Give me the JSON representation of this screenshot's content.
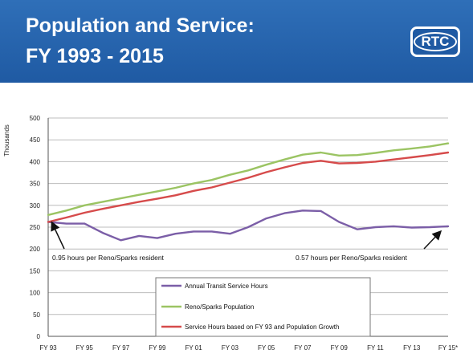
{
  "header": {
    "title_line1": "Population and Service:",
    "title_line2": "FY 1993 - 2015",
    "logo_text": "RTC",
    "background_color": "#1f5aa3"
  },
  "chart_data": {
    "type": "line",
    "ylabel": "Thousands",
    "ylim": [
      0,
      500
    ],
    "yticks": [
      0,
      50,
      100,
      150,
      200,
      250,
      300,
      350,
      400,
      450,
      500
    ],
    "grid": true,
    "x": [
      "FY 93",
      "FY 94",
      "FY 95",
      "FY 96",
      "FY 97",
      "FY 98",
      "FY 99",
      "FY 00",
      "FY 01",
      "FY 02",
      "FY 03",
      "FY 04",
      "FY 05",
      "FY 06",
      "FY 07",
      "FY 08",
      "FY 09",
      "FY 10",
      "FY 11",
      "FY 12",
      "FY 13",
      "FY 14",
      "FY 15*"
    ],
    "xtick_labels": [
      "FY 93",
      "FY 95",
      "FY 97",
      "FY 99",
      "FY 01",
      "FY 03",
      "FY 05",
      "FY 07",
      "FY 09",
      "FY 11",
      "FY 13",
      "FY 15*"
    ],
    "legend_position": "bottom-center",
    "series": [
      {
        "name": "Annual Transit Service Hours",
        "color": "#7b5ea7",
        "values": [
          262,
          258,
          258,
          237,
          220,
          230,
          225,
          235,
          240,
          240,
          235,
          250,
          270,
          282,
          288,
          287,
          262,
          245,
          250,
          252,
          249,
          250,
          252
        ]
      },
      {
        "name": "Reno/Sparks Population",
        "color": "#9bc463",
        "values": [
          278,
          288,
          300,
          308,
          316,
          324,
          332,
          340,
          350,
          358,
          370,
          380,
          393,
          405,
          416,
          421,
          414,
          415,
          420,
          426,
          430,
          435,
          442
        ]
      },
      {
        "name": "Service Hours based on FY 93 and Population Growth",
        "color": "#d64b4b",
        "values": [
          262,
          272,
          283,
          292,
          300,
          308,
          315,
          323,
          333,
          341,
          352,
          363,
          376,
          387,
          397,
          402,
          396,
          397,
          400,
          405,
          410,
          415,
          421
        ]
      }
    ],
    "annotations": [
      {
        "text": "0.95 hours per Reno/Sparks resident"
      },
      {
        "text": "0.57 hours per Reno/Sparks resident"
      }
    ]
  }
}
